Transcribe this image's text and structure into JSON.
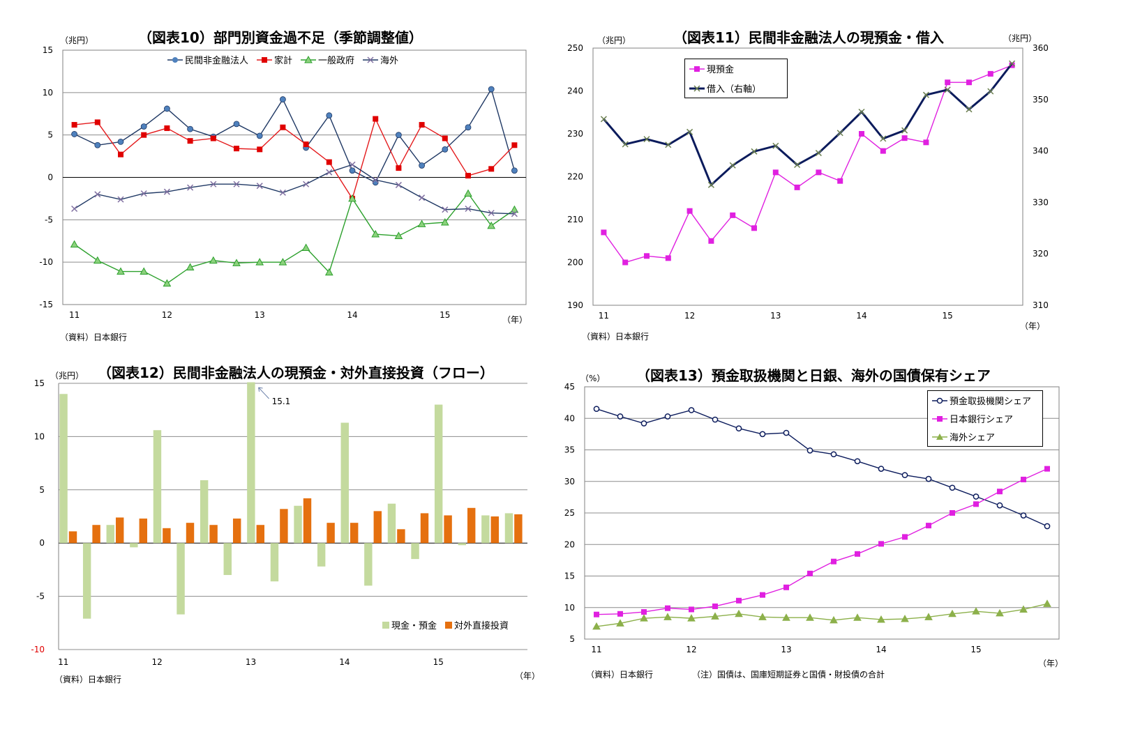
{
  "chart_data": [
    {
      "id": "fig10",
      "type": "line",
      "title": "（図表10）部門別資金過不足（季節調整値）",
      "ylabel": "（兆円）",
      "xunit": "（年）",
      "source": "（資料）日本銀行",
      "ylim": [
        -15,
        15
      ],
      "yticks": [
        15,
        10,
        5,
        0,
        -5,
        -10,
        -15
      ],
      "xticks": [
        {
          "label": "11",
          "at": 0
        },
        {
          "label": "12",
          "at": 4
        },
        {
          "label": "13",
          "at": 8
        },
        {
          "label": "14",
          "at": 12
        },
        {
          "label": "15",
          "at": 16
        }
      ],
      "grid": true,
      "legend": "top",
      "series": [
        {
          "name": "民間非金融法人",
          "color": "#1F3864",
          "marker": "circle",
          "markerColor": "#4F81BD",
          "values": [
            5.1,
            3.8,
            4.2,
            6.0,
            8.1,
            5.7,
            4.8,
            6.3,
            4.9,
            9.2,
            3.5,
            7.3,
            0.8,
            -0.6,
            5.0,
            1.4,
            3.3,
            5.9,
            10.4,
            0.8
          ]
        },
        {
          "name": "家計",
          "color": "#E41A1C",
          "marker": "square",
          "markerColor": "#E00000",
          "values": [
            6.2,
            6.5,
            2.7,
            5.0,
            5.8,
            4.3,
            4.6,
            3.4,
            3.3,
            5.9,
            3.9,
            1.8,
            -2.5,
            6.9,
            1.1,
            6.2,
            4.6,
            0.2,
            1.0,
            3.8
          ]
        },
        {
          "name": "一般政府",
          "color": "#2CA02C",
          "marker": "triangle",
          "markerColor": "#8CD17D",
          "values": [
            -7.9,
            -9.8,
            -11.1,
            -11.1,
            -12.5,
            -10.6,
            -9.8,
            -10.1,
            -10.0,
            -10.0,
            -8.3,
            -11.2,
            -2.5,
            -6.7,
            -6.9,
            -5.5,
            -5.3,
            -1.9,
            -5.7,
            -3.8
          ]
        },
        {
          "name": "海外",
          "color": "#1F3864",
          "marker": "x",
          "markerColor": "#7F6FA0",
          "values": [
            -3.7,
            -2.0,
            -2.6,
            -1.9,
            -1.7,
            -1.2,
            -0.8,
            -0.8,
            -1.0,
            -1.8,
            -0.8,
            0.6,
            1.5,
            -0.3,
            -0.9,
            -2.4,
            -3.8,
            -3.7,
            -4.2,
            -4.3
          ]
        }
      ]
    },
    {
      "id": "fig11",
      "type": "line",
      "title": "（図表11）民間非金融法人の現預金・借入",
      "ylabel": "（兆円）",
      "y2label": "（兆円）",
      "xunit": "（年）",
      "source": "（資料）日本銀行",
      "ylim": [
        190,
        250
      ],
      "yticks": [
        250,
        240,
        230,
        220,
        210,
        200,
        190
      ],
      "y2lim": [
        310,
        360
      ],
      "y2ticks": [
        360,
        350,
        340,
        330,
        320,
        310
      ],
      "xticks": [
        {
          "label": "11",
          "at": 0
        },
        {
          "label": "12",
          "at": 4
        },
        {
          "label": "13",
          "at": 8
        },
        {
          "label": "14",
          "at": 12
        },
        {
          "label": "15",
          "at": 16
        }
      ],
      "grid": false,
      "legend": "top-left",
      "series": [
        {
          "name": "現預金",
          "axis": "left",
          "color": "#E020E0",
          "marker": "square",
          "markerColor": "#E020E0",
          "values": [
            207,
            200,
            201.5,
            201,
            212,
            205,
            211,
            208,
            221,
            217.5,
            221,
            219,
            230,
            226,
            229,
            228,
            242,
            242,
            244,
            246
          ]
        },
        {
          "name": "借入（右軸）",
          "axis": "right",
          "color": "#0B1B5C",
          "marker": "x",
          "markerColor": "#6B7F4F",
          "values": [
            346.2,
            341.3,
            342.3,
            341.2,
            343.7,
            333.4,
            337.2,
            339.9,
            341.0,
            337.3,
            339.6,
            343.5,
            347.6,
            342.4,
            344.0,
            350.9,
            351.9,
            348.1,
            351.6,
            357.0
          ]
        }
      ]
    },
    {
      "id": "fig12",
      "type": "bar",
      "title": "（図表12）民間非金融法人の現預金・対外直接投資（フロー）",
      "ylabel": "（兆円）",
      "xunit": "（年）",
      "source": "（資料）日本銀行",
      "ylim": [
        -10,
        15
      ],
      "yticks": [
        15,
        10,
        5,
        0,
        -5,
        -10
      ],
      "xticks": [
        {
          "label": "11",
          "at": 0
        },
        {
          "label": "12",
          "at": 4
        },
        {
          "label": "13",
          "at": 8
        },
        {
          "label": "14",
          "at": 12
        },
        {
          "label": "15",
          "at": 16
        }
      ],
      "annotation": {
        "text": "15.1",
        "at": 8
      },
      "grid": true,
      "legend": "bottom-right",
      "series": [
        {
          "name": "現金・預金",
          "color": "#C4DA9E",
          "values": [
            14.0,
            -7.1,
            1.7,
            -0.4,
            10.6,
            -6.7,
            5.9,
            -3.0,
            15.1,
            -3.6,
            3.5,
            -2.2,
            11.3,
            -4.0,
            3.7,
            -1.5,
            13.0,
            -0.2,
            2.6,
            2.8
          ]
        },
        {
          "name": "対外直接投資",
          "color": "#E5700F",
          "values": [
            1.1,
            1.7,
            2.4,
            2.3,
            1.4,
            1.9,
            1.7,
            2.3,
            1.7,
            3.2,
            4.2,
            1.9,
            1.9,
            3.0,
            1.3,
            2.8,
            2.6,
            3.3,
            2.5,
            2.7
          ]
        }
      ]
    },
    {
      "id": "fig13",
      "type": "line",
      "title": "（図表13）預金取扱機関と日銀、海外の国債保有シェア",
      "ylabel": "（%）",
      "xunit": "（年）",
      "source": "（資料）日本銀行",
      "note": "（注）国債は、国庫短期証券と国債・財投債の合計",
      "ylim": [
        5,
        45
      ],
      "yticks": [
        45,
        40,
        35,
        30,
        25,
        20,
        15,
        10,
        5
      ],
      "xticks": [
        {
          "label": "11",
          "at": 0
        },
        {
          "label": "12",
          "at": 4
        },
        {
          "label": "13",
          "at": 8
        },
        {
          "label": "14",
          "at": 12
        },
        {
          "label": "15",
          "at": 16
        }
      ],
      "grid": true,
      "legend": "top-right",
      "series": [
        {
          "name": "預金取扱機関シェア",
          "color": "#0B1B5C",
          "marker": "circle-open",
          "markerColor": "#0B1B5C",
          "values": [
            41.5,
            40.3,
            39.2,
            40.3,
            41.3,
            39.8,
            38.4,
            37.5,
            37.7,
            34.9,
            34.3,
            33.2,
            32.0,
            31.0,
            30.4,
            29.0,
            27.6,
            26.2,
            24.6,
            22.9
          ]
        },
        {
          "name": "日本銀行シェア",
          "color": "#E020E0",
          "marker": "square",
          "markerColor": "#E020E0",
          "values": [
            8.9,
            9.0,
            9.3,
            9.9,
            9.7,
            10.2,
            11.1,
            12.0,
            13.2,
            15.4,
            17.3,
            18.5,
            20.1,
            21.2,
            23.0,
            25.0,
            26.4,
            28.4,
            30.3,
            32.0
          ]
        },
        {
          "name": "海外シェア",
          "color": "#8CB04A",
          "marker": "triangle",
          "markerColor": "#8CB04A",
          "values": [
            7.0,
            7.5,
            8.3,
            8.5,
            8.3,
            8.6,
            9.0,
            8.5,
            8.4,
            8.4,
            8.0,
            8.4,
            8.1,
            8.2,
            8.5,
            9.0,
            9.4,
            9.1,
            9.7,
            10.6
          ]
        }
      ]
    }
  ]
}
